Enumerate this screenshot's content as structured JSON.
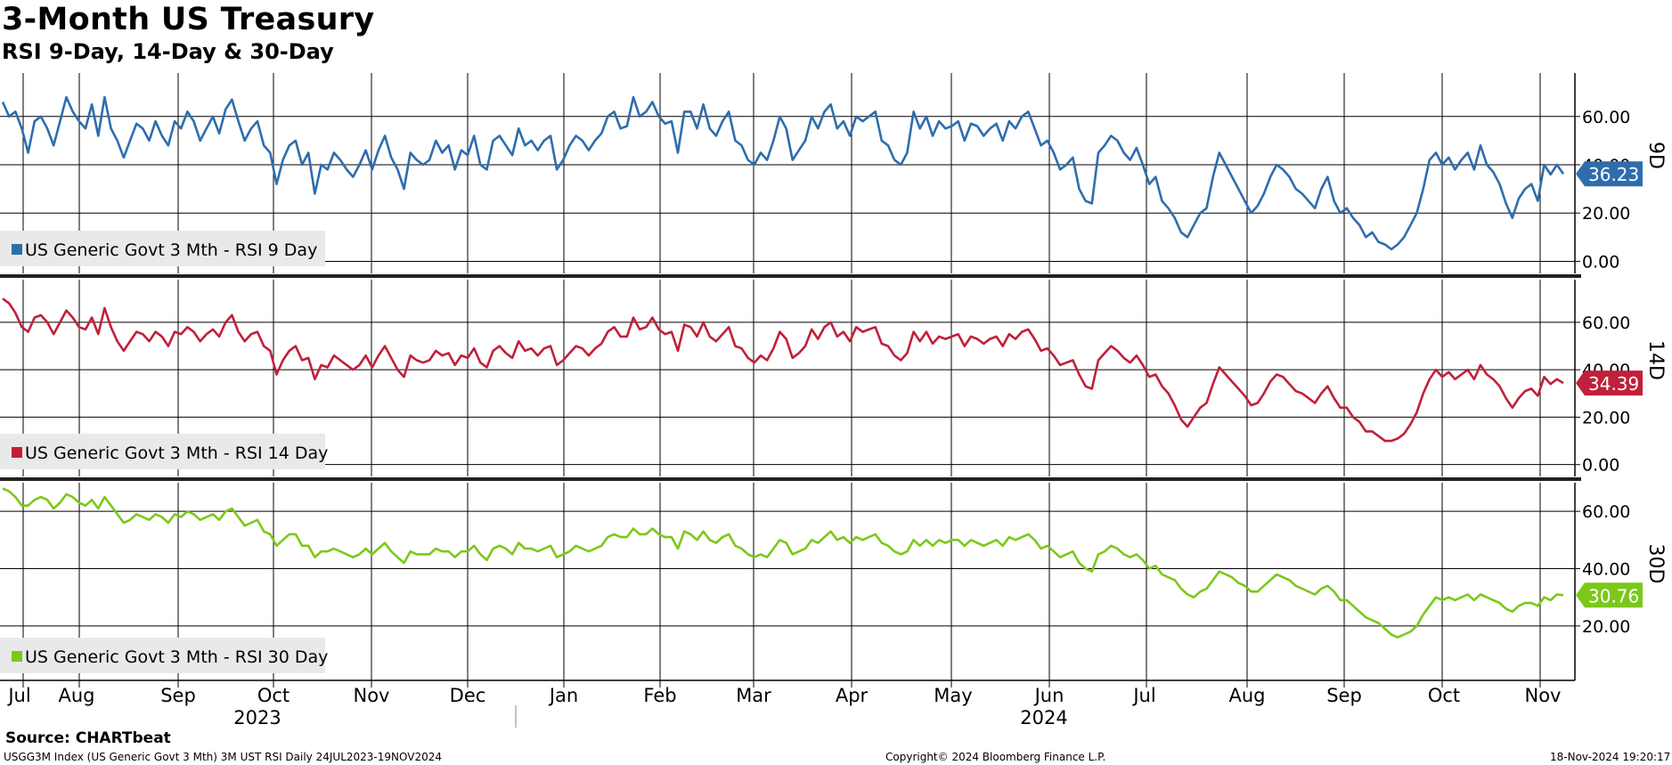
{
  "title": "3-Month US Treasury",
  "subtitle": "RSI 9-Day, 14-Day & 30-Day",
  "footer": {
    "source": "Source: CHARTbeat",
    "ticker": "USGG3M Index (US Generic Govt 3 Mth) 3M UST RSI  Daily 24JUL2023-19NOV2024",
    "copyright": "Copyright© 2024 Bloomberg Finance L.P.",
    "timestamp": "18-Nov-2024 19:20:17"
  },
  "chart_data": {
    "type": "line",
    "x_axis": {
      "months": [
        "Jul",
        "Aug",
        "Sep",
        "Oct",
        "Nov",
        "Dec",
        "Jan",
        "Feb",
        "Mar",
        "Apr",
        "May",
        "Jun",
        "Jul",
        "Aug",
        "Sep",
        "Oct",
        "Nov"
      ],
      "years": [
        "2023",
        "2024"
      ],
      "range": [
        "2023-07-24",
        "2024-11-19"
      ]
    },
    "panels": [
      {
        "key": "rsi9",
        "axis_label": "9D",
        "legend": "US Generic Govt 3 Mth - RSI 9 Day",
        "color": "#2e6dad",
        "last_value": "36.23",
        "ylim": [
          -5,
          78
        ],
        "yticks": [
          0,
          20,
          40,
          60
        ],
        "ytick_labels": [
          "0.00",
          "20.00",
          "40.00",
          "60.00"
        ],
        "values": [
          66,
          60,
          62,
          55,
          45,
          58,
          60,
          55,
          48,
          58,
          68,
          62,
          58,
          55,
          65,
          52,
          68,
          55,
          50,
          43,
          50,
          57,
          55,
          50,
          58,
          52,
          48,
          58,
          55,
          62,
          58,
          50,
          55,
          60,
          53,
          63,
          67,
          58,
          50,
          55,
          58,
          48,
          45,
          32,
          42,
          48,
          50,
          40,
          45,
          28,
          40,
          38,
          45,
          42,
          38,
          35,
          40,
          46,
          38,
          46,
          52,
          43,
          38,
          30,
          45,
          42,
          40,
          42,
          50,
          45,
          48,
          38,
          46,
          44,
          52,
          40,
          38,
          50,
          52,
          48,
          44,
          55,
          48,
          50,
          46,
          50,
          52,
          38,
          42,
          48,
          52,
          50,
          46,
          50,
          53,
          60,
          62,
          55,
          56,
          68,
          60,
          62,
          66,
          60,
          57,
          58,
          45,
          62,
          62,
          55,
          65,
          55,
          52,
          58,
          62,
          50,
          48,
          42,
          40,
          45,
          42,
          50,
          60,
          55,
          42,
          46,
          50,
          60,
          55,
          62,
          65,
          55,
          58,
          52,
          60,
          58,
          60,
          62,
          50,
          48,
          42,
          40,
          45,
          62,
          55,
          60,
          52,
          58,
          55,
          56,
          58,
          50,
          57,
          56,
          52,
          55,
          57,
          50,
          58,
          55,
          60,
          62,
          55,
          48,
          50,
          45,
          38,
          40,
          43,
          30,
          25,
          24,
          45,
          48,
          52,
          50,
          45,
          42,
          47,
          40,
          32,
          35,
          25,
          22,
          18,
          12,
          10,
          15,
          20,
          22,
          35,
          45,
          40,
          35,
          30,
          25,
          20,
          23,
          28,
          35,
          40,
          38,
          35,
          30,
          28,
          25,
          22,
          30,
          35,
          25,
          20,
          22,
          18,
          15,
          10,
          12,
          8,
          7,
          5,
          7,
          10,
          15,
          20,
          30,
          42,
          45,
          40,
          43,
          38,
          42,
          45,
          38,
          48,
          40,
          37,
          32,
          24,
          18,
          26,
          30,
          32,
          25,
          40,
          36,
          40,
          36.23
        ]
      },
      {
        "key": "rsi14",
        "axis_label": "14D",
        "legend": "US Generic Govt 3 Mth - RSI 14 Day",
        "color": "#c0203a",
        "last_value": "34.39",
        "ylim": [
          -5,
          78
        ],
        "yticks": [
          0,
          20,
          40,
          60
        ],
        "ytick_labels": [
          "0.00",
          "20.00",
          "40.00",
          "60.00"
        ],
        "values": [
          70,
          68,
          64,
          58,
          56,
          62,
          63,
          60,
          55,
          60,
          65,
          62,
          58,
          57,
          62,
          55,
          66,
          58,
          52,
          48,
          52,
          56,
          55,
          52,
          56,
          54,
          50,
          56,
          55,
          58,
          56,
          52,
          55,
          57,
          54,
          60,
          63,
          56,
          52,
          55,
          56,
          50,
          48,
          38,
          44,
          48,
          50,
          44,
          45,
          36,
          42,
          41,
          46,
          44,
          42,
          40,
          42,
          46,
          41,
          46,
          50,
          45,
          40,
          37,
          46,
          44,
          43,
          44,
          48,
          46,
          47,
          42,
          46,
          45,
          49,
          43,
          41,
          48,
          50,
          47,
          45,
          52,
          48,
          49,
          46,
          49,
          50,
          42,
          44,
          47,
          50,
          49,
          46,
          49,
          51,
          56,
          58,
          54,
          54,
          62,
          57,
          58,
          62,
          57,
          55,
          56,
          48,
          59,
          58,
          54,
          60,
          54,
          52,
          55,
          58,
          50,
          49,
          45,
          43,
          46,
          44,
          49,
          56,
          53,
          45,
          47,
          50,
          57,
          53,
          58,
          60,
          54,
          56,
          52,
          58,
          56,
          57,
          58,
          51,
          50,
          46,
          44,
          47,
          56,
          52,
          56,
          51,
          54,
          53,
          54,
          55,
          50,
          54,
          53,
          51,
          53,
          54,
          50,
          55,
          53,
          56,
          57,
          53,
          48,
          49,
          46,
          42,
          43,
          44,
          38,
          33,
          32,
          44,
          47,
          50,
          48,
          45,
          43,
          46,
          42,
          37,
          38,
          33,
          30,
          25,
          19,
          16,
          20,
          24,
          26,
          34,
          41,
          38,
          35,
          32,
          29,
          25,
          26,
          30,
          35,
          38,
          37,
          34,
          31,
          30,
          28,
          26,
          30,
          33,
          28,
          24,
          24,
          20,
          18,
          14,
          14,
          12,
          10,
          10,
          11,
          13,
          17,
          22,
          30,
          36,
          40,
          37,
          39,
          36,
          38,
          40,
          36,
          42,
          38,
          36,
          33,
          28,
          24,
          28,
          31,
          32,
          29,
          37,
          34,
          36,
          34.39
        ]
      },
      {
        "key": "rsi30",
        "axis_label": "30D",
        "legend": "US Generic Govt 3 Mth - RSI 30 Day",
        "color": "#7cc81a",
        "last_value": "30.76",
        "ylim": [
          1,
          70
        ],
        "yticks": [
          20,
          40,
          60
        ],
        "ytick_labels": [
          "20.00",
          "40.00",
          "60.00"
        ],
        "values": [
          68,
          67,
          65,
          62,
          62,
          64,
          65,
          64,
          61,
          63,
          66,
          65,
          63,
          62,
          64,
          61,
          65,
          62,
          59,
          56,
          57,
          59,
          58,
          57,
          59,
          58,
          56,
          59,
          58,
          60,
          59,
          57,
          58,
          59,
          57,
          60,
          61,
          58,
          55,
          56,
          57,
          53,
          52,
          48,
          50,
          52,
          52,
          48,
          48,
          44,
          46,
          46,
          47,
          46,
          45,
          44,
          45,
          47,
          45,
          47,
          49,
          46,
          44,
          42,
          46,
          45,
          45,
          45,
          47,
          46,
          46,
          44,
          46,
          46,
          48,
          45,
          43,
          47,
          48,
          47,
          45,
          49,
          47,
          47,
          46,
          47,
          48,
          44,
          45,
          46,
          48,
          47,
          46,
          47,
          48,
          51,
          52,
          51,
          51,
          54,
          52,
          52,
          54,
          52,
          51,
          51,
          47,
          53,
          52,
          50,
          53,
          50,
          49,
          51,
          52,
          48,
          47,
          45,
          44,
          45,
          44,
          47,
          50,
          49,
          45,
          46,
          47,
          50,
          49,
          51,
          53,
          50,
          51,
          49,
          51,
          50,
          51,
          52,
          49,
          48,
          46,
          45,
          46,
          50,
          48,
          50,
          48,
          50,
          49,
          50,
          50,
          48,
          50,
          49,
          48,
          49,
          50,
          48,
          51,
          50,
          51,
          52,
          50,
          47,
          48,
          46,
          44,
          45,
          46,
          42,
          40,
          39,
          45,
          46,
          48,
          47,
          45,
          44,
          45,
          43,
          40,
          41,
          38,
          37,
          36,
          33,
          31,
          30,
          32,
          33,
          36,
          39,
          38,
          37,
          35,
          34,
          32,
          32,
          34,
          36,
          38,
          37,
          36,
          34,
          33,
          32,
          31,
          33,
          34,
          32,
          29,
          29,
          27,
          25,
          23,
          22,
          21,
          19,
          17,
          16,
          17,
          18,
          20,
          24,
          27,
          30,
          29,
          30,
          29,
          30,
          31,
          29,
          31,
          30,
          29,
          28,
          26,
          25,
          27,
          28,
          28,
          27,
          30,
          29,
          31,
          30.76
        ]
      }
    ]
  }
}
